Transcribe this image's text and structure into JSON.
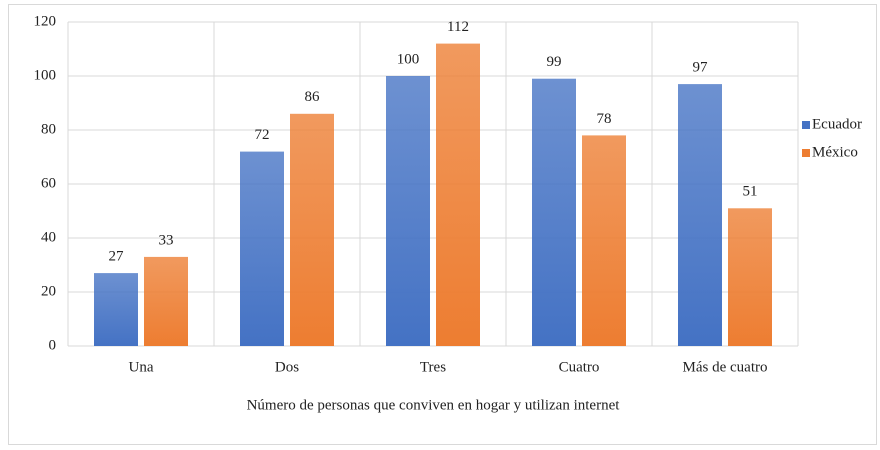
{
  "chart_data": {
    "type": "bar",
    "x_label": "Número de personas que conviven en hogar  y utilizan internet",
    "categories": [
      "Una",
      "Dos",
      "Tres",
      "Cuatro",
      "Más de cuatro"
    ],
    "series": [
      {
        "name": "Ecuador",
        "color": "#4472c4",
        "values": [
          27,
          72,
          100,
          99,
          97
        ]
      },
      {
        "name": "México",
        "color": "#ed7d31",
        "values": [
          33,
          86,
          112,
          78,
          51
        ]
      }
    ],
    "ylim": [
      0,
      120
    ],
    "yticks": [
      0,
      20,
      40,
      60,
      80,
      100,
      120
    ],
    "grid": true,
    "legend": "right"
  }
}
